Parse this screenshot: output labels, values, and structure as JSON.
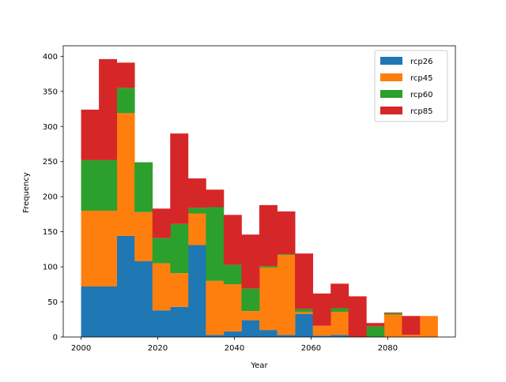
{
  "chart_data": {
    "type": "bar",
    "stacked": true,
    "histogram": true,
    "xlabel": "Year",
    "ylabel": "Frequency",
    "xlim": [
      1995.35,
      2097.65
    ],
    "ylim": [
      0,
      415
    ],
    "xticks": [
      2000,
      2020,
      2040,
      2060,
      2080
    ],
    "yticks": [
      0,
      50,
      100,
      150,
      200,
      250,
      300,
      350,
      400
    ],
    "bin_edges": [
      2000,
      2004.65,
      2009.3,
      2013.95,
      2018.6,
      2023.25,
      2027.9,
      2032.55,
      2037.2,
      2041.85,
      2046.5,
      2051.15,
      2055.8,
      2060.45,
      2065.1,
      2069.75,
      2074.4,
      2079.05,
      2083.7,
      2088.35,
      2093
    ],
    "legend_position": "top-right",
    "series": [
      {
        "name": "rcp26",
        "color": "#1f77b4",
        "values": [
          72,
          72,
          144,
          108,
          38,
          43,
          131,
          3,
          8,
          24,
          10,
          3,
          33,
          2,
          3,
          0,
          0,
          0,
          0,
          0
        ]
      },
      {
        "name": "rcp45",
        "color": "#ff7f0e",
        "values": [
          108,
          108,
          175,
          70,
          67,
          48,
          45,
          77,
          67,
          13,
          89,
          114,
          3,
          14,
          33,
          0,
          0,
          32,
          3,
          30
        ]
      },
      {
        "name": "rcp60",
        "color": "#2ca02c",
        "values": [
          72,
          72,
          36,
          71,
          36,
          70,
          8,
          105,
          28,
          32,
          2,
          1,
          4,
          0,
          5,
          0,
          15,
          2,
          0,
          0
        ]
      },
      {
        "name": "rcp85",
        "color": "#d62728",
        "values": [
          72,
          144,
          36,
          0,
          42,
          129,
          42,
          25,
          71,
          77,
          87,
          61,
          79,
          46,
          35,
          58,
          5,
          1,
          27,
          0
        ]
      }
    ]
  }
}
